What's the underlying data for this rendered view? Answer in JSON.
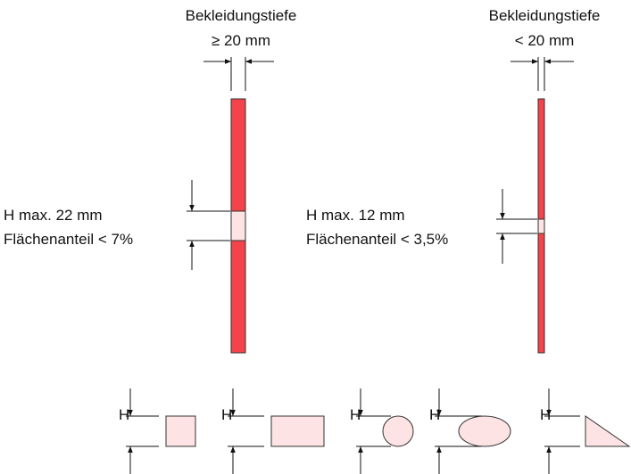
{
  "left": {
    "depth_title": "Bekleidungstiefe",
    "depth_value": "≥ 20 mm",
    "h_label": "H",
    "h_text": " max. 22 mm",
    "area_text": "Flächenanteil < 7%"
  },
  "right": {
    "depth_title": "Bekleidungstiefe",
    "depth_value": "< 20 mm",
    "h_label": "H",
    "h_text": " max. 12 mm",
    "area_text": "Flächenanteil < 3,5%"
  },
  "shapes": {
    "h_label": "H",
    "items": [
      "square",
      "rectangle",
      "circle",
      "ellipse",
      "triangle"
    ]
  },
  "colors": {
    "panel": "#f2444a",
    "opening": "#fde3e3",
    "stroke": "#333333"
  }
}
